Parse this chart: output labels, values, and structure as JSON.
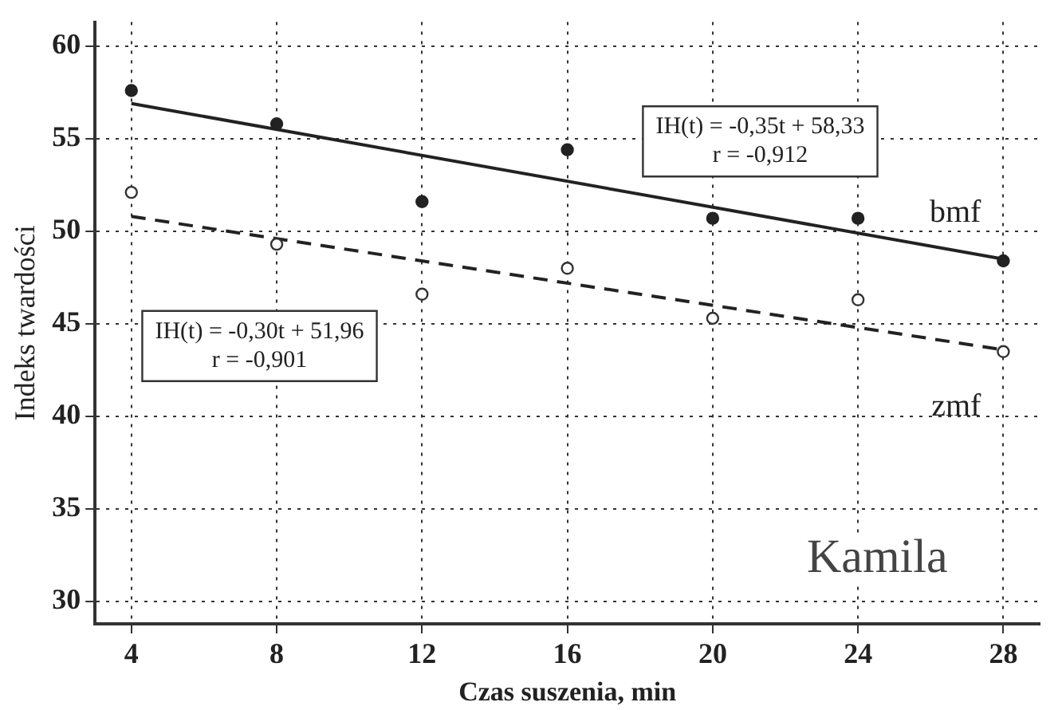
{
  "chart_data": {
    "type": "scatter",
    "xlabel": "Czas suszenia, min",
    "ylabel": "Indeks twardości",
    "xlim": [
      3,
      29
    ],
    "xticks": [
      4,
      8,
      12,
      16,
      20,
      24,
      28
    ],
    "ylim": [
      28.8,
      61.3
    ],
    "yticks": [
      30,
      35,
      40,
      45,
      50,
      55,
      60
    ],
    "grid": true,
    "legend": false,
    "marker": "circle",
    "series": [
      {
        "name": "bmf",
        "type": "scatter",
        "color": "#222222",
        "x": [
          4,
          8,
          12,
          16,
          20,
          24,
          28
        ],
        "values": [
          57.6,
          55.8,
          51.6,
          54.4,
          50.7,
          50.7,
          48.4
        ]
      },
      {
        "name": "zmf",
        "type": "scatter",
        "color": "#333333",
        "x": [
          4,
          8,
          12,
          16,
          20,
          24,
          28
        ],
        "values": [
          52.1,
          49.3,
          46.6,
          48.0,
          45.3,
          46.3,
          43.5
        ]
      },
      {
        "type": "line",
        "color": "#222222",
        "line_style": "solid",
        "marker": "none",
        "x": [
          4,
          28
        ],
        "values": [
          56.9,
          48.5
        ]
      },
      {
        "type": "line",
        "color": "#222222",
        "line_style": "dashed",
        "marker": "none",
        "x": [
          4,
          28
        ],
        "values": [
          50.8,
          43.6
        ]
      }
    ],
    "annotations": [
      "IH(t) = -0,35t + 58,33\nr = -0,912",
      "IH(t) = -0,30t + 51,96\nr = -0,901",
      "Kamila"
    ]
  }
}
